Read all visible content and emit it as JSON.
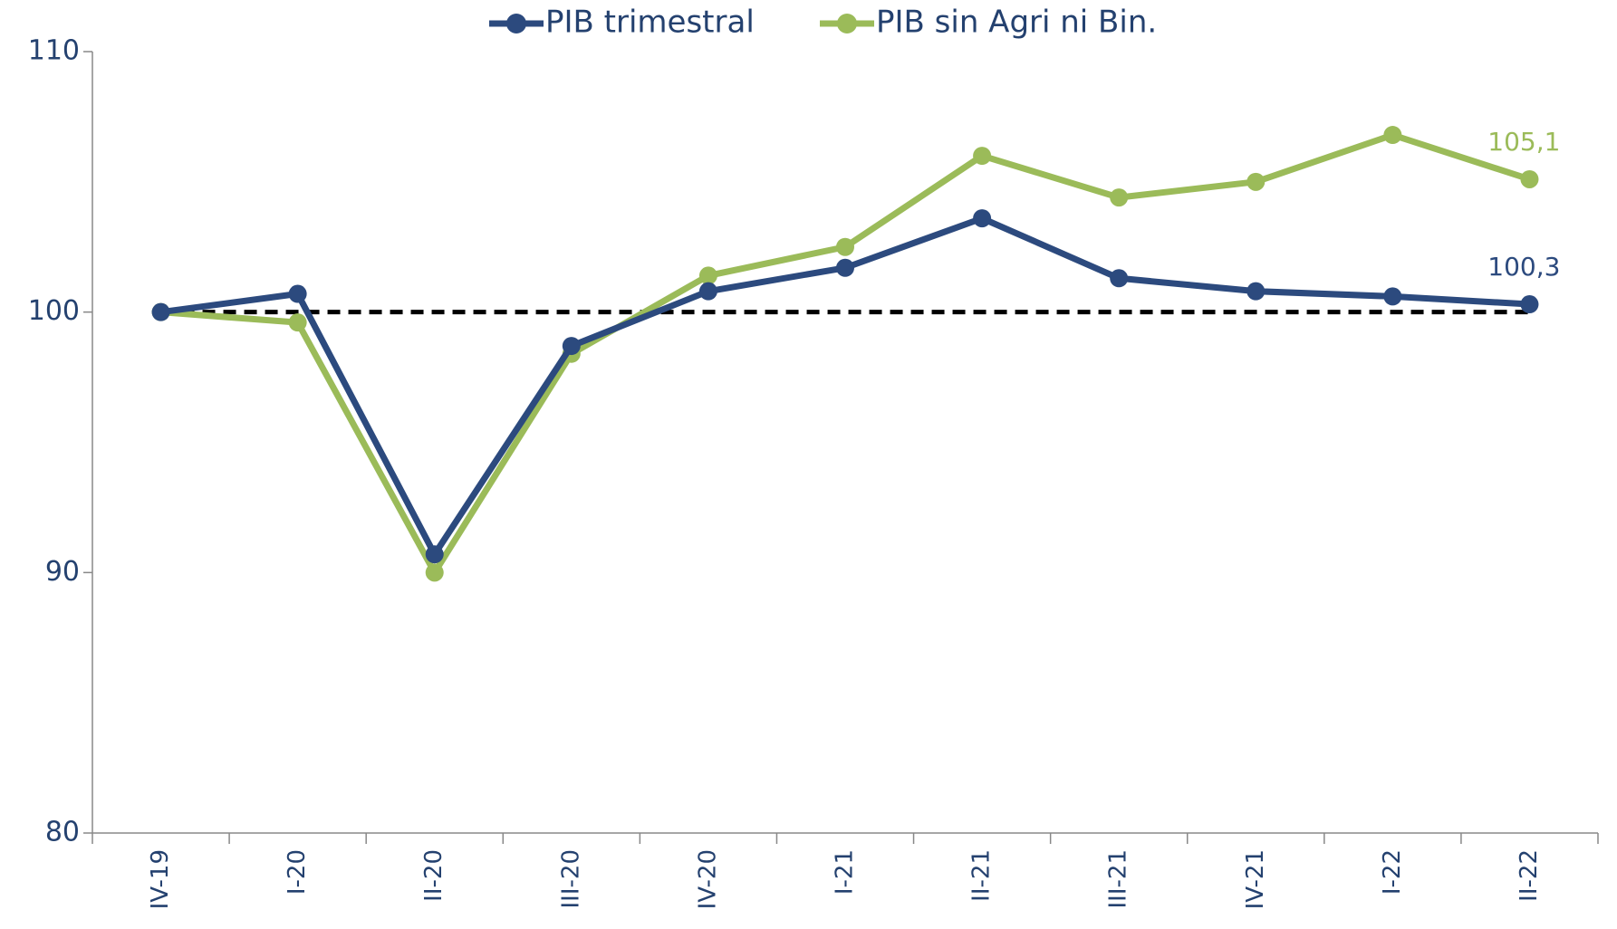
{
  "chart_data": {
    "type": "line",
    "categories": [
      "IV-19",
      "I-20",
      "II-20",
      "III-20",
      "IV-20",
      "I-21",
      "II-21",
      "III-21",
      "IV-21",
      "I-22",
      "II-22"
    ],
    "series": [
      {
        "name": "PIB trimestral",
        "color": "#2c4a7e",
        "values": [
          100,
          100.7,
          90.7,
          98.7,
          100.8,
          101.7,
          103.6,
          101.3,
          100.8,
          100.6,
          100.3
        ],
        "value_labels": [
          null,
          null,
          null,
          null,
          null,
          null,
          null,
          null,
          null,
          null,
          "100,3"
        ]
      },
      {
        "name": "PIB sin Agri ni Bin.",
        "color": "#9bbb59",
        "values": [
          100,
          99.6,
          90.0,
          98.4,
          101.4,
          102.5,
          106.0,
          104.4,
          105.0,
          106.8,
          105.1
        ],
        "value_labels": [
          null,
          null,
          null,
          null,
          null,
          null,
          null,
          null,
          null,
          null,
          "105,1"
        ]
      }
    ],
    "reference_line": 100,
    "ylim": [
      80,
      110
    ],
    "yticks": [
      80,
      90,
      100,
      110
    ]
  }
}
